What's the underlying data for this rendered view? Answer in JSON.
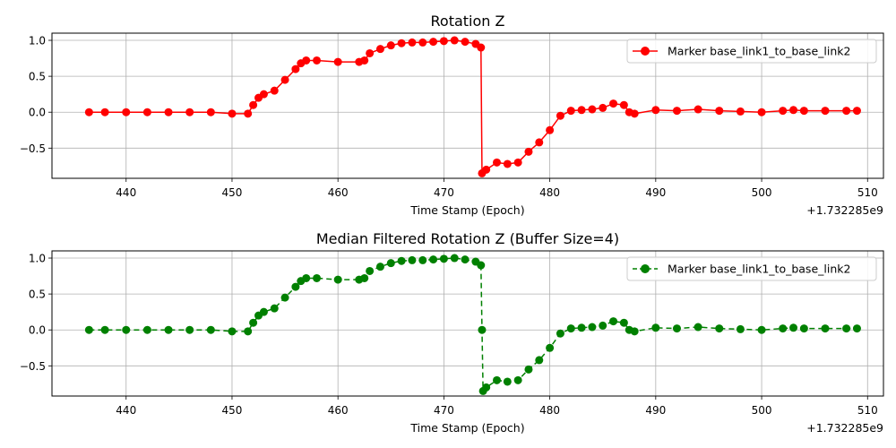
{
  "chart_data": [
    {
      "type": "line",
      "title": "Rotation Z",
      "xlabel": "Time Stamp (Epoch)",
      "ylabel": "",
      "offset_label": "+1.732285e9",
      "xlim": [
        433,
        511.5
      ],
      "ylim": [
        -0.92,
        1.1
      ],
      "xticks": [
        440,
        450,
        460,
        470,
        480,
        490,
        500,
        510
      ],
      "yticks": [
        -0.5,
        0.0,
        0.5,
        1.0
      ],
      "ytick_labels": [
        "−0.5",
        "0.0",
        "0.5",
        "1.0"
      ],
      "grid": true,
      "legend_position": "top-right",
      "series": [
        {
          "name": "Marker base_link1_to_base_link2",
          "color": "#ff0000",
          "linestyle": "solid",
          "marker": "circle",
          "x": [
            436.5,
            438,
            440,
            442,
            444,
            446,
            448,
            450,
            451.5,
            452,
            452.5,
            453,
            454,
            455,
            456,
            456.5,
            457,
            458,
            460,
            462,
            462.5,
            463,
            464,
            465,
            466,
            467,
            468,
            469,
            470,
            471,
            472,
            473,
            473.5,
            473.6,
            474,
            475,
            476,
            477,
            478,
            479,
            480,
            481,
            482,
            483,
            484,
            485,
            486,
            487,
            487.5,
            488,
            490,
            492,
            494,
            496,
            498,
            500,
            502,
            503,
            504,
            506,
            508,
            509
          ],
          "values": [
            0.0,
            0.0,
            0.0,
            0.0,
            0.0,
            0.0,
            0.0,
            -0.02,
            -0.02,
            0.1,
            0.2,
            0.25,
            0.3,
            0.45,
            0.6,
            0.68,
            0.72,
            0.72,
            0.7,
            0.7,
            0.72,
            0.82,
            0.88,
            0.93,
            0.96,
            0.97,
            0.97,
            0.98,
            0.99,
            1.0,
            0.98,
            0.95,
            0.9,
            -0.85,
            -0.8,
            -0.7,
            -0.72,
            -0.7,
            -0.55,
            -0.42,
            -0.25,
            -0.05,
            0.02,
            0.03,
            0.04,
            0.06,
            0.12,
            0.1,
            0.0,
            -0.02,
            0.03,
            0.02,
            0.04,
            0.02,
            0.01,
            0.0,
            0.02,
            0.03,
            0.02,
            0.02,
            0.02,
            0.02
          ]
        }
      ]
    },
    {
      "type": "line",
      "title": "Median Filtered Rotation Z (Buffer Size=4)",
      "xlabel": "Time Stamp (Epoch)",
      "ylabel": "",
      "offset_label": "+1.732285e9",
      "xlim": [
        433,
        511.5
      ],
      "ylim": [
        -0.92,
        1.1
      ],
      "xticks": [
        440,
        450,
        460,
        470,
        480,
        490,
        500,
        510
      ],
      "yticks": [
        -0.5,
        0.0,
        0.5,
        1.0
      ],
      "ytick_labels": [
        "−0.5",
        "0.0",
        "0.5",
        "1.0"
      ],
      "grid": true,
      "legend_position": "top-right",
      "series": [
        {
          "name": "Marker base_link1_to_base_link2",
          "color": "#008000",
          "linestyle": "dashed",
          "marker": "circle",
          "x": [
            436.5,
            438,
            440,
            442,
            444,
            446,
            448,
            450,
            451.5,
            452,
            452.5,
            453,
            454,
            455,
            456,
            456.5,
            457,
            458,
            460,
            462,
            462.5,
            463,
            464,
            465,
            466,
            467,
            468,
            469,
            470,
            471,
            472,
            473,
            473.5,
            473.6,
            473.7,
            474,
            475,
            476,
            477,
            478,
            479,
            480,
            481,
            482,
            483,
            484,
            485,
            486,
            487,
            487.5,
            488,
            490,
            492,
            494,
            496,
            498,
            500,
            502,
            503,
            504,
            506,
            508,
            509
          ],
          "values": [
            0.0,
            0.0,
            0.0,
            0.0,
            0.0,
            0.0,
            0.0,
            -0.02,
            -0.02,
            0.1,
            0.2,
            0.25,
            0.3,
            0.45,
            0.6,
            0.68,
            0.72,
            0.72,
            0.7,
            0.7,
            0.72,
            0.82,
            0.88,
            0.93,
            0.96,
            0.97,
            0.97,
            0.98,
            0.99,
            1.0,
            0.98,
            0.95,
            0.9,
            0.0,
            -0.85,
            -0.8,
            -0.7,
            -0.72,
            -0.7,
            -0.55,
            -0.42,
            -0.25,
            -0.05,
            0.02,
            0.03,
            0.04,
            0.06,
            0.12,
            0.1,
            0.0,
            -0.02,
            0.03,
            0.02,
            0.04,
            0.02,
            0.01,
            0.0,
            0.02,
            0.03,
            0.02,
            0.02,
            0.02,
            0.02
          ]
        }
      ]
    }
  ]
}
